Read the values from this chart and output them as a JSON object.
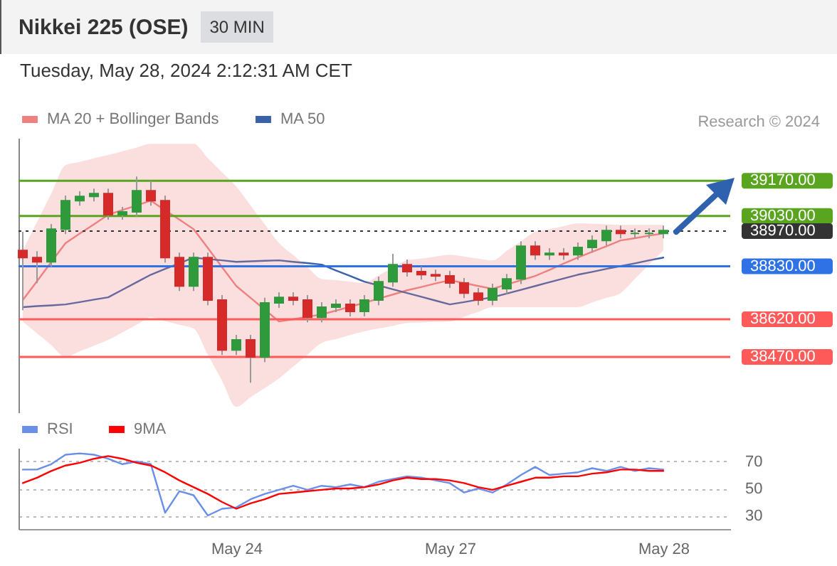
{
  "chart_data": [
    {
      "type": "candlestick",
      "title": "Nikkei 225 (OSE)",
      "subtitle": "Tuesday, May 28, 2024 2:12:31 AM CET",
      "annotations": [
        "30 MIN",
        "Research © 2024"
      ],
      "categories": [
        null,
        null,
        null,
        null,
        null,
        null,
        null,
        null,
        null,
        null,
        null,
        null,
        null,
        null,
        null,
        null,
        null,
        null,
        null,
        null,
        null,
        null,
        null,
        null,
        null,
        null,
        null,
        null,
        null,
        null,
        null,
        null,
        null,
        null,
        null,
        null,
        null,
        null,
        null,
        null,
        null,
        null,
        null,
        null,
        null,
        null
      ],
      "ohlc": [
        [
          38893,
          38967,
          38656,
          38865
        ],
        [
          38865,
          38890,
          38763,
          38848
        ],
        [
          38848,
          38998,
          38828,
          38978
        ],
        [
          38978,
          39111,
          38958,
          39091
        ],
        [
          39091,
          39128,
          39071,
          39108
        ],
        [
          39108,
          39139,
          39088,
          39119
        ],
        [
          39119,
          39139,
          39015,
          39035
        ],
        [
          39035,
          39066,
          39015,
          39046
        ],
        [
          39046,
          39187,
          39026,
          39130
        ],
        [
          39130,
          39170,
          39071,
          39091
        ],
        [
          39091,
          39111,
          38845,
          38865
        ],
        [
          38865,
          38885,
          38732,
          38752
        ],
        [
          38752,
          38885,
          38732,
          38865
        ],
        [
          38865,
          38885,
          38676,
          38696
        ],
        [
          38696,
          38716,
          38478,
          38498
        ],
        [
          38498,
          38558,
          38478,
          38538
        ],
        [
          38538,
          38558,
          38368,
          38470
        ],
        [
          38470,
          38705,
          38450,
          38685
        ],
        [
          38685,
          38727,
          38665,
          38707
        ],
        [
          38707,
          38727,
          38676,
          38696
        ],
        [
          38696,
          38716,
          38608,
          38628
        ],
        [
          38628,
          38688,
          38608,
          38668
        ],
        [
          38668,
          38699,
          38648,
          38679
        ],
        [
          38679,
          38699,
          38631,
          38651
        ],
        [
          38651,
          38716,
          38631,
          38696
        ],
        [
          38696,
          38789,
          38676,
          38769
        ],
        [
          38769,
          38880,
          38749,
          38837
        ],
        [
          38837,
          38857,
          38789,
          38809
        ],
        [
          38809,
          38829,
          38777,
          38797
        ],
        [
          38797,
          38817,
          38772,
          38792
        ],
        [
          38792,
          38812,
          38744,
          38764
        ],
        [
          38764,
          38784,
          38704,
          38724
        ],
        [
          38724,
          38744,
          38676,
          38696
        ],
        [
          38696,
          38761,
          38676,
          38741
        ],
        [
          38741,
          38800,
          38721,
          38780
        ],
        [
          38780,
          38930,
          38760,
          38910
        ],
        [
          38910,
          38930,
          38856,
          38876
        ],
        [
          38876,
          38902,
          38856,
          38882
        ],
        [
          38882,
          38902,
          38856,
          38876
        ],
        [
          38876,
          38925,
          38856,
          38905
        ],
        [
          38905,
          38953,
          38885,
          38933
        ],
        [
          38933,
          38992,
          38913,
          38972
        ],
        [
          38972,
          38992,
          38941,
          38961
        ],
        [
          38961,
          38981,
          38941,
          38961
        ],
        [
          38961,
          38981,
          38941,
          38961
        ],
        [
          38961,
          38992,
          38941,
          38972
        ]
      ],
      "series": [
        {
          "name": "MA 20 + Bollinger Bands",
          "type": "line",
          "color": "#f08080",
          "values": [
            38696,
            38771,
            38847,
            38922,
            38960,
            38997,
            39035,
            39054,
            39072,
            39091,
            39053,
            39016,
            38978,
            38903,
            38827,
            38752,
            38705,
            38658,
            38611,
            38620,
            38630,
            38639,
            38654,
            38670,
            38685,
            38702,
            38718,
            38735,
            38748,
            38762,
            38775,
            38764,
            38752,
            38741,
            38758,
            38775,
            38792,
            38816,
            38841,
            38865,
            38888,
            38910,
            38933,
            38942,
            38952,
            38961
          ],
          "upper": [
            38893,
            39006,
            39119,
            39232,
            39245,
            39259,
            39272,
            39287,
            39302,
            39317,
            39317,
            39317,
            39317,
            39260,
            39204,
            39147,
            39072,
            38997,
            38922,
            38875,
            38827,
            38780,
            38775,
            38769,
            38764,
            38794,
            38824,
            38854,
            38861,
            38869,
            38876,
            38869,
            38861,
            38854,
            38892,
            38929,
            38967,
            38978,
            38990,
            39001,
            38999,
            38997,
            38995,
            38995,
            38995,
            38995
          ],
          "lower": [
            38611,
            38564,
            38517,
            38470,
            38493,
            38515,
            38538,
            38568,
            38598,
            38628,
            38613,
            38598,
            38583,
            38479,
            38376,
            38272,
            38310,
            38347,
            38385,
            38432,
            38479,
            38526,
            38541,
            38557,
            38572,
            38583,
            38594,
            38605,
            38607,
            38609,
            38611,
            38630,
            38649,
            38668,
            38668,
            38668,
            38668,
            38668,
            38668,
            38668,
            38687,
            38705,
            38724,
            38780,
            38837,
            38893
          ]
        },
        {
          "name": "MA 50",
          "type": "line",
          "color": "#3a62a8",
          "values": [
            38668,
            38672,
            38675,
            38679,
            38688,
            38698,
            38707,
            38737,
            38767,
            38797,
            38820,
            38842,
            38865,
            38859,
            38854,
            38848,
            38850,
            38852,
            38854,
            38848,
            38843,
            38837,
            38814,
            38792,
            38769,
            38754,
            38739,
            38724,
            38709,
            38694,
            38679,
            38688,
            38698,
            38707,
            38722,
            38737,
            38752,
            38767,
            38782,
            38797,
            38808,
            38820,
            38831,
            38842,
            38854,
            38865
          ]
        }
      ],
      "ref_lines": [
        {
          "axis": "y",
          "value": 39170,
          "label": "39170.00",
          "color": "#5aa51f"
        },
        {
          "axis": "y",
          "value": 39030,
          "label": "39030.00",
          "color": "#5aa51f"
        },
        {
          "axis": "y",
          "value": 38970,
          "label": "38970.00",
          "color": "#333333",
          "line_style": "dotted"
        },
        {
          "axis": "y",
          "value": 38830,
          "label": "38830.00",
          "color": "#2f72e6"
        },
        {
          "axis": "y",
          "value": 38620,
          "label": "38620.00",
          "color": "#ff5a5a"
        },
        {
          "axis": "y",
          "value": 38470,
          "label": "38470.00",
          "color": "#ff5a5a"
        }
      ],
      "ylim": [
        38250,
        39340
      ],
      "tick_labels": false,
      "legend": "top left"
    },
    {
      "type": "line",
      "categories": [
        null,
        null,
        null,
        null,
        null,
        null,
        null,
        null,
        null,
        null,
        null,
        null,
        null,
        null,
        null,
        "May 24",
        null,
        null,
        null,
        null,
        null,
        null,
        null,
        null,
        null,
        null,
        null,
        null,
        null,
        null,
        "May 27",
        null,
        null,
        null,
        null,
        null,
        null,
        null,
        null,
        null,
        null,
        null,
        null,
        null,
        null,
        "May 28"
      ],
      "series": [
        {
          "name": "RSI",
          "color": "#6a8fe8",
          "values": [
            64,
            64,
            68,
            75,
            76,
            75,
            72,
            68,
            70,
            68,
            32,
            48,
            45,
            30,
            35,
            36,
            42,
            46,
            49,
            52,
            49,
            52,
            51,
            53,
            51,
            55,
            57,
            59,
            58,
            56,
            54,
            47,
            50,
            47,
            53,
            60,
            66,
            60,
            61,
            62,
            65,
            63,
            66,
            63,
            65,
            64
          ]
        },
        {
          "name": "9MA",
          "color": "#ff0000",
          "values": [
            54,
            58,
            63,
            67,
            69,
            72,
            74,
            72,
            69,
            67,
            62,
            56,
            51,
            46,
            40,
            35,
            39,
            42,
            46,
            47,
            48,
            49,
            50,
            50,
            51,
            53,
            56,
            58,
            57,
            57,
            56,
            54,
            51,
            49,
            52,
            55,
            58,
            58,
            59,
            59,
            61,
            62,
            64,
            64,
            63,
            63
          ]
        }
      ],
      "ylim": [
        20,
        80
      ],
      "yticks": [
        30,
        50,
        70
      ],
      "grid": "y",
      "legend": "top left"
    }
  ]
}
